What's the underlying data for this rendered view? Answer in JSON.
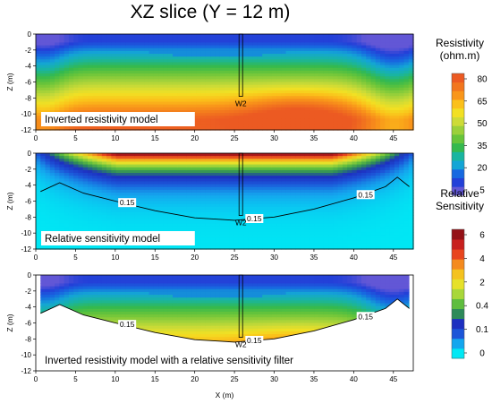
{
  "title": "XZ slice (Y = 12 m)",
  "chart_data": {
    "type": "heatmap",
    "x_axis": {
      "label": "X (m)",
      "range": [
        0,
        47.5
      ],
      "ticks": [
        0,
        5,
        10,
        15,
        20,
        25,
        30,
        35,
        40,
        45
      ]
    },
    "z_axis": {
      "label": "Z (m)",
      "range": [
        -12,
        0
      ],
      "ticks": [
        0,
        -2,
        -4,
        -6,
        -8,
        -10,
        -12
      ]
    },
    "well": {
      "label": "W2",
      "x": 25.8,
      "depth": 7.8
    },
    "panels": [
      {
        "id": "resistivity",
        "label": "Inverted resistivity model",
        "quantity": "resistivity",
        "masked": false,
        "contour_labels": []
      },
      {
        "id": "sensitivity",
        "label": "Relative sensitivity model",
        "quantity": "sensitivity",
        "masked": false,
        "contour_labels": [
          "0.15",
          "0.15",
          "0.15"
        ]
      },
      {
        "id": "filtered",
        "label": "Inverted resistivity model with a relative sensitivity filter",
        "quantity": "resistivity",
        "masked": true,
        "contour_labels": [
          "0.15",
          "0.15",
          "0.15"
        ]
      }
    ],
    "sensitivity_contour": {
      "value": 0.15,
      "points": [
        [
          0.6,
          -4.8
        ],
        [
          3,
          -3.7
        ],
        [
          6,
          -5.0
        ],
        [
          10,
          -6.0
        ],
        [
          15,
          -7.2
        ],
        [
          20,
          -8.1
        ],
        [
          25,
          -8.4
        ],
        [
          30,
          -8.0
        ],
        [
          35,
          -7.0
        ],
        [
          40,
          -5.6
        ],
        [
          44,
          -4.2
        ],
        [
          45.5,
          -3.0
        ],
        [
          47,
          -4.2
        ]
      ]
    },
    "colorbars": [
      {
        "title_lines": [
          "Resistivity",
          "(ohm.m)"
        ],
        "ticks": [
          "80",
          "65",
          "50",
          "35",
          "20",
          "5"
        ],
        "colors": [
          "#6257d6",
          "#2340d8",
          "#1769e0",
          "#14a5d6",
          "#19b5a0",
          "#34b94e",
          "#67c43a",
          "#9bd03a",
          "#cddb37",
          "#f2e023",
          "#fbc01a",
          "#f9961a",
          "#f2761e",
          "#ec5a22"
        ]
      },
      {
        "title_lines": [
          "Relative",
          "Sensitivity"
        ],
        "ticks": [
          "6",
          "4",
          "2",
          "0.4",
          "0.1",
          "0"
        ],
        "colors": [
          "#00e8f4",
          "#14a6ee",
          "#1c55d8",
          "#1d2fc0",
          "#2d8a5a",
          "#5ebd3e",
          "#a8d73a",
          "#e6e12a",
          "#f4c21e",
          "#f48a1e",
          "#e8451e",
          "#c8201e",
          "#941016"
        ]
      }
    ]
  }
}
